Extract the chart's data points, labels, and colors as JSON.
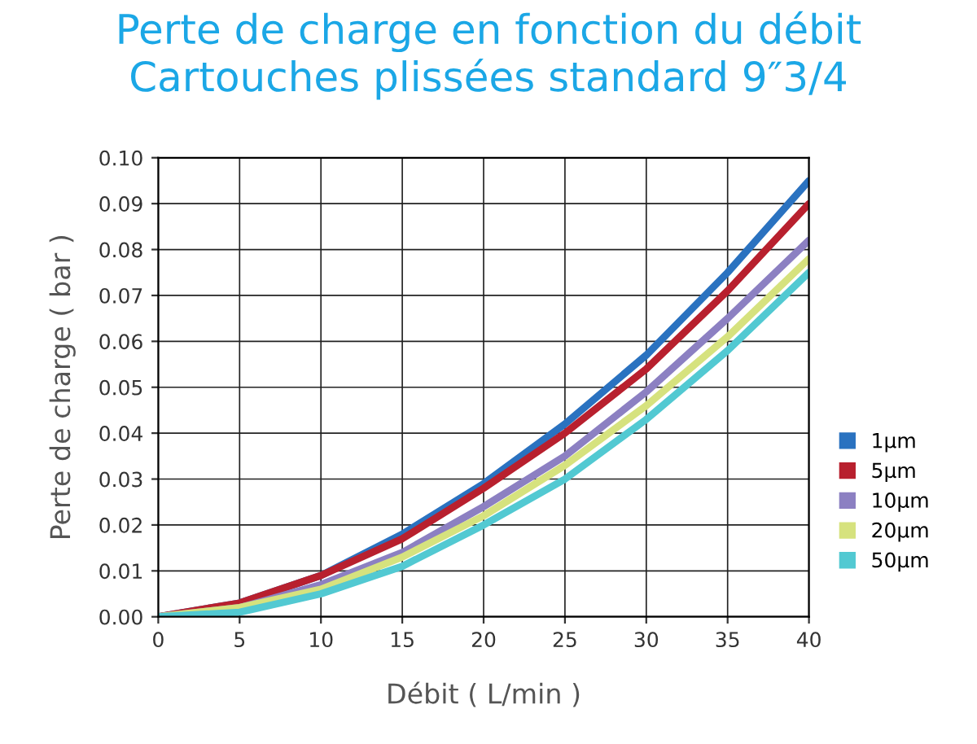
{
  "chart_data": {
    "type": "line",
    "title": "Perte de charge en fonction du débit\nCartouches plissées standard 9″3/4",
    "xlabel": "Débit ( L/min )",
    "ylabel": "Perte de charge ( bar )",
    "x": [
      0,
      5,
      10,
      15,
      20,
      25,
      30,
      35,
      40
    ],
    "series": [
      {
        "name": "1µm",
        "color": "#2a72c0",
        "values": [
          0,
          0.003,
          0.009,
          0.018,
          0.029,
          0.042,
          0.057,
          0.075,
          0.095
        ]
      },
      {
        "name": "5µm",
        "color": "#b8202e",
        "values": [
          0,
          0.003,
          0.009,
          0.017,
          0.028,
          0.04,
          0.054,
          0.071,
          0.09
        ]
      },
      {
        "name": "10µm",
        "color": "#8c80c2",
        "values": [
          0,
          0.002,
          0.007,
          0.014,
          0.024,
          0.035,
          0.049,
          0.065,
          0.082
        ]
      },
      {
        "name": "20µm",
        "color": "#d6e27e",
        "values": [
          0,
          0.002,
          0.006,
          0.013,
          0.022,
          0.033,
          0.046,
          0.061,
          0.078
        ]
      },
      {
        "name": "50µm",
        "color": "#52c9d2",
        "values": [
          0,
          0.001,
          0.005,
          0.011,
          0.02,
          0.03,
          0.043,
          0.058,
          0.075
        ]
      }
    ],
    "xlim": [
      0,
      40
    ],
    "xticks": [
      0,
      5,
      10,
      15,
      20,
      25,
      30,
      35,
      40
    ],
    "ylim": [
      0,
      0.1
    ],
    "yticks": [
      {
        "value": 0,
        "label": "0.00"
      },
      {
        "value": 0.01,
        "label": "0.01"
      },
      {
        "value": 0.02,
        "label": "0.02"
      },
      {
        "value": 0.03,
        "label": "0.03"
      },
      {
        "value": 0.04,
        "label": "0.04"
      },
      {
        "value": 0.05,
        "label": "0.05"
      },
      {
        "value": 0.06,
        "label": "0.06"
      },
      {
        "value": 0.07,
        "label": "0.07"
      },
      {
        "value": 0.08,
        "label": "0.08"
      },
      {
        "value": 0.09,
        "label": "0.09"
      },
      {
        "value": 0.1,
        "label": "0.10"
      }
    ],
    "grid": true,
    "legend": "right",
    "marker": "none",
    "line_style": "solid"
  }
}
